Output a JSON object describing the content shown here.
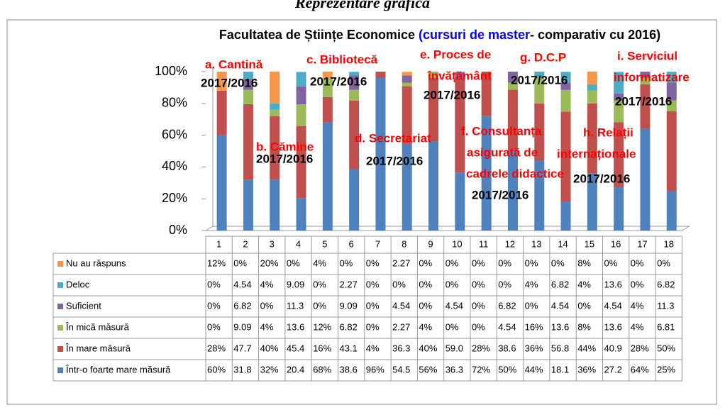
{
  "header": "Reprezentare grafică",
  "chart_data": {
    "type": "stacked_bar",
    "title_parts": [
      "Facultatea de Științe Economice",
      "(cursuri de master",
      "- comparativ cu 2016)"
    ],
    "title_colors": [
      "#000000",
      "#0000ff",
      "#000000"
    ],
    "categories": [
      "1",
      "2",
      "3",
      "4",
      "5",
      "6",
      "7",
      "8",
      "9",
      "10",
      "11",
      "12",
      "13",
      "14",
      "15",
      "16",
      "17",
      "18"
    ],
    "ylim": [
      0,
      100
    ],
    "yticks": [
      {
        "value": 0,
        "label": "0%"
      },
      {
        "value": 20,
        "label": "20%"
      },
      {
        "value": 40,
        "label": "40%"
      },
      {
        "value": 60,
        "label": "60%"
      },
      {
        "value": 80,
        "label": "80%"
      },
      {
        "value": 100,
        "label": "100%"
      }
    ],
    "series": [
      {
        "name": "Într-o foarte mare măsură",
        "color": "#4f81bd",
        "values": [
          60,
          31.8,
          32,
          20.4,
          68,
          38.6,
          96,
          54.5,
          56,
          36.3,
          72,
          50,
          44,
          18.1,
          36,
          27.2,
          64,
          25
        ],
        "value_labels": [
          "60%",
          "31.8",
          "32%",
          "20.4",
          "68%",
          "38.6",
          "96%",
          "54.5",
          "56%",
          "36.3",
          "72%",
          "50%",
          "44%",
          "18.1",
          "36%",
          "27.2",
          "64%",
          "25%"
        ]
      },
      {
        "name": "În mare măsură",
        "color": "#c0504d",
        "values": [
          28,
          47.7,
          40,
          45.4,
          16,
          43.1,
          4,
          36.3,
          40,
          59.0,
          28,
          38.6,
          36,
          56.8,
          44,
          40.9,
          28,
          50
        ],
        "value_labels": [
          "28%",
          "47.7",
          "40%",
          "45.4",
          "16%",
          "43.1",
          "4%",
          "36.3",
          "40%",
          "59.0",
          "28%",
          "38.6",
          "36%",
          "56.8",
          "44%",
          "40.9",
          "28%",
          "50%"
        ]
      },
      {
        "name": "În mică măsură",
        "color": "#9bbb59",
        "values": [
          0,
          9.09,
          4,
          13.6,
          12,
          6.82,
          0,
          2.27,
          4,
          0,
          0,
          4.54,
          16,
          13.6,
          8,
          13.6,
          4,
          6.81
        ],
        "value_labels": [
          "0%",
          "9.09",
          "4%",
          "13.6",
          "12%",
          "6.82",
          "0%",
          "2.27",
          "4%",
          "0%",
          "0%",
          "4.54",
          "16%",
          "13.6",
          "8%",
          "13.6",
          "4%",
          "6.81"
        ]
      },
      {
        "name": "Suficient",
        "color": "#8064a2",
        "values": [
          0,
          6.82,
          0,
          11.3,
          0,
          9.09,
          0,
          4.54,
          0,
          4.54,
          0,
          6.82,
          0,
          4.54,
          0,
          4.54,
          4,
          11.3
        ],
        "value_labels": [
          "0%",
          "6.82",
          "0%",
          "11.3",
          "0%",
          "9.09",
          "0%",
          "4.54",
          "0%",
          "4.54",
          "0%",
          "6.82",
          "0%",
          "4.54",
          "0%",
          "4.54",
          "4%",
          "11.3"
        ]
      },
      {
        "name": "Deloc",
        "color": "#4bacc6",
        "values": [
          0,
          4.54,
          4,
          9.09,
          0,
          2.27,
          0,
          0,
          0,
          0,
          0,
          0,
          4,
          6.82,
          4,
          13.6,
          0,
          6.82
        ],
        "value_labels": [
          "0%",
          "4.54",
          "4%",
          "9.09",
          "0%",
          "2.27",
          "0%",
          "0%",
          "0%",
          "0%",
          "0%",
          "0%",
          "4%",
          "6.82",
          "4%",
          "13.6",
          "0%",
          "6.82"
        ]
      },
      {
        "name": "Nu au răspuns",
        "color": "#f79646",
        "values": [
          12,
          0,
          20,
          0,
          4,
          0,
          0,
          2.27,
          0,
          0,
          0,
          0,
          0,
          0,
          8,
          0,
          0,
          0
        ],
        "value_labels": [
          "12%",
          "0%",
          "20%",
          "0%",
          "4%",
          "0%",
          "0%",
          "2.27",
          "0%",
          "0%",
          "0%",
          "0%",
          "0%",
          "0%",
          "8%",
          "0%",
          "0%",
          "0%"
        ]
      }
    ],
    "annotations": [
      {
        "lines": [
          "a. Cantină"
        ],
        "color": "#ff0000"
      },
      {
        "lines": [
          "2017/2016"
        ],
        "color": "#000000"
      },
      {
        "lines": [
          "b. Cămine"
        ],
        "color": "#ff0000"
      },
      {
        "lines": [
          "2017/2016"
        ],
        "color": "#000000"
      },
      {
        "lines": [
          "c. Bibliotecă"
        ],
        "color": "#ff0000"
      },
      {
        "lines": [
          "2017/2016"
        ],
        "color": "#000000"
      },
      {
        "lines": [
          "d. Secretariat"
        ],
        "color": "#ff0000"
      },
      {
        "lines": [
          "2017/2016"
        ],
        "color": "#000000"
      },
      {
        "lines": [
          "e. Proces de",
          "învățământ"
        ],
        "color": "#ff0000"
      },
      {
        "lines": [
          "2017/2016"
        ],
        "color": "#000000"
      },
      {
        "lines": [
          "f. Consultanța",
          "asigurată de",
          "cadrele didactice"
        ],
        "color": "#ff0000"
      },
      {
        "lines": [
          "2017/2016"
        ],
        "color": "#000000"
      },
      {
        "lines": [
          "g. D.C.P"
        ],
        "color": "#ff0000"
      },
      {
        "lines": [
          "2017/2016"
        ],
        "color": "#000000"
      },
      {
        "lines": [
          "h. Relații",
          "internaționale"
        ],
        "color": "#ff0000"
      },
      {
        "lines": [
          "2017/2016"
        ],
        "color": "#000000"
      },
      {
        "lines": [
          "i. Serviciul",
          "informatizare"
        ],
        "color": "#ff0000"
      },
      {
        "lines": [
          "2017/2016"
        ],
        "color": "#000000"
      }
    ]
  }
}
